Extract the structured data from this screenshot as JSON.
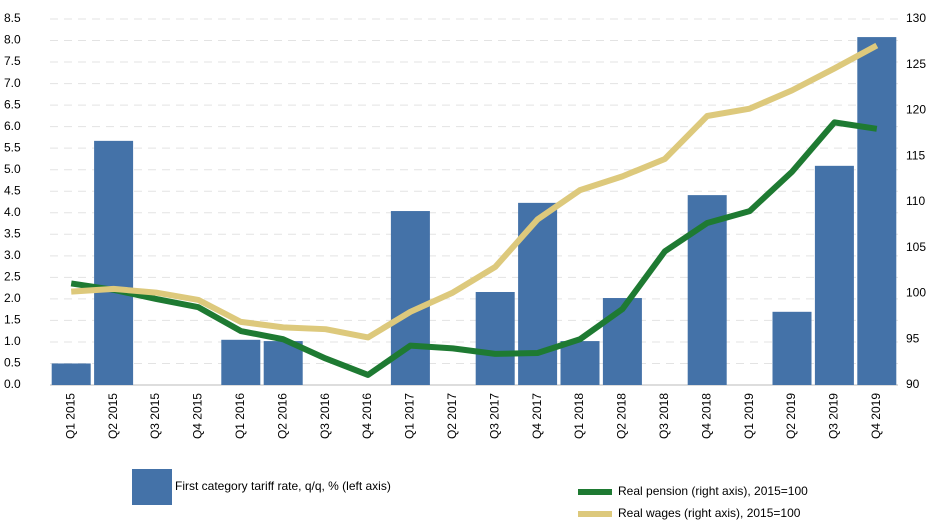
{
  "chart_data": {
    "type": "bar+line",
    "categories": [
      "Q1 2015",
      "Q2 2015",
      "Q3 2015",
      "Q4 2015",
      "Q1 2016",
      "Q2 2016",
      "Q3 2016",
      "Q4 2016",
      "Q1 2017",
      "Q2 2017",
      "Q3 2017",
      "Q4 2017",
      "Q1 2018",
      "Q2 2018",
      "Q3 2018",
      "Q4 2018",
      "Q1 2019",
      "Q2 2019",
      "Q3 2019",
      "Q4 2019"
    ],
    "series": [
      {
        "name": "First category tariff rate, q/q, % (left axis)",
        "type": "bar",
        "color": "#4472a8",
        "values": [
          0.5,
          5.67,
          null,
          null,
          1.05,
          1.02,
          null,
          null,
          4.04,
          null,
          2.16,
          4.23,
          1.02,
          2.02,
          null,
          4.41,
          null,
          1.7,
          5.09,
          8.08
        ]
      },
      {
        "name": "Real pension (right axis), 2015=100",
        "type": "line",
        "axis": "y2",
        "color": "#1e7a32",
        "values": [
          101.1,
          100.4,
          99.4,
          98.5,
          95.9,
          95.0,
          92.9,
          91.1,
          94.3,
          94.0,
          93.4,
          93.5,
          95.0,
          98.3,
          104.6,
          107.7,
          109.0,
          113.3,
          118.7,
          118.0
        ]
      },
      {
        "name": "Real wages (right axis), 2015=100",
        "type": "line",
        "axis": "y2",
        "color": "#ddc97c",
        "values": [
          100.2,
          100.5,
          100.1,
          99.3,
          96.9,
          96.3,
          96.1,
          95.2,
          98.0,
          100.1,
          102.9,
          108.1,
          111.3,
          112.8,
          114.7,
          119.4,
          120.2,
          122.2,
          124.6,
          127.1
        ]
      }
    ],
    "ylim": [
      0,
      8.5
    ],
    "yticks": [
      {
        "value": 0,
        "label": "0.0"
      },
      0.5,
      {
        "value": 1,
        "label": "1.0"
      },
      1.5,
      {
        "value": 2,
        "label": "2.0"
      },
      2.5,
      {
        "value": 3,
        "label": "3.0"
      },
      3.5,
      {
        "value": 4,
        "label": "4.0"
      },
      4.5,
      {
        "value": 5,
        "label": "5.0"
      },
      5.5,
      {
        "value": 6,
        "label": "6.0"
      },
      6.5,
      {
        "value": 7,
        "label": "7.0"
      },
      7.5,
      {
        "value": 8,
        "label": "8.0"
      },
      8.5
    ],
    "y2lim": [
      90,
      130
    ],
    "y2ticks": [
      90,
      95,
      100,
      105,
      110,
      115,
      120,
      125,
      130
    ],
    "grid": true
  }
}
